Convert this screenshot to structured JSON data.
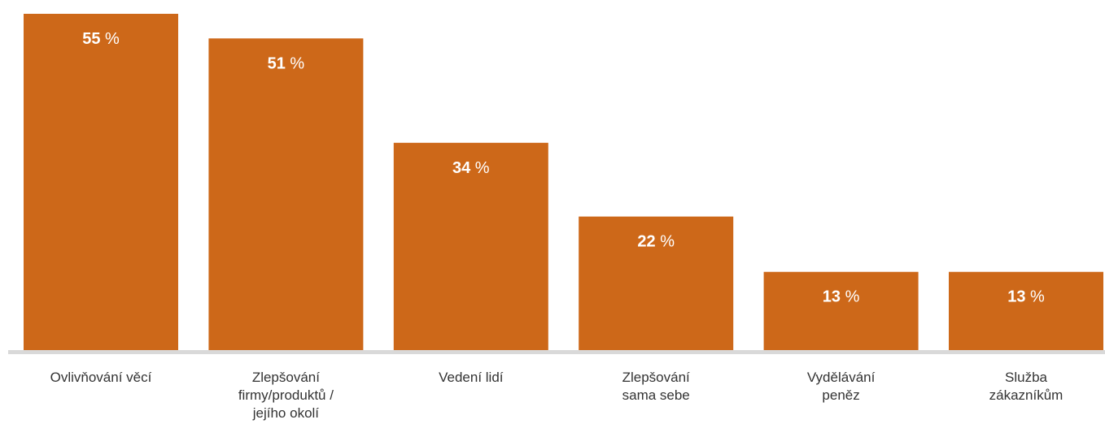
{
  "chart_data": {
    "type": "bar",
    "categories": [
      [
        "Ovlivňování věcí"
      ],
      [
        "Zlepšování",
        "firmy/produktů /",
        "jejího okolí"
      ],
      [
        "Vedení lidí"
      ],
      [
        "Zlepšování",
        "sama sebe"
      ],
      [
        "Vydělávání",
        "peněz"
      ],
      [
        "Služba",
        "zákazníkům"
      ]
    ],
    "values": [
      55,
      51,
      34,
      22,
      13,
      13
    ],
    "value_unit": "%",
    "ylim": [
      0,
      55
    ],
    "grid": false,
    "legend": "none",
    "colors": {
      "bar": "#cd6819",
      "baseline": "#d9d9d9",
      "label_text": "#333333",
      "value_text": "#ffffff"
    }
  }
}
